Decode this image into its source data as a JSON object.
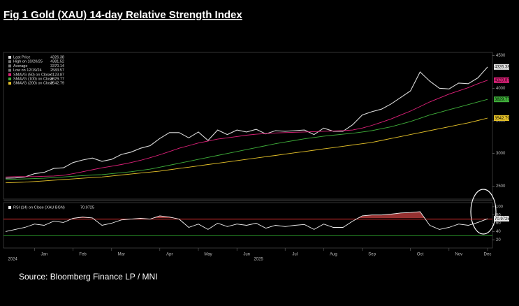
{
  "title": "Fig 1  Gold (XAU) 14-day Relative Strength Index",
  "source": "Source: Bloomberg Finance LP / MNI",
  "x_year_labels": [
    "2024",
    "2025"
  ],
  "chart_data": [
    {
      "type": "line",
      "categories": [
        null,
        null,
        null,
        "Jan",
        null,
        null,
        null,
        "Feb",
        null,
        null,
        null,
        "Mar",
        null,
        null,
        null,
        null,
        "Apr",
        null,
        null,
        null,
        "May",
        null,
        null,
        null,
        "Jun",
        null,
        null,
        null,
        null,
        "Jul",
        null,
        null,
        null,
        "Aug",
        null,
        null,
        null,
        "Sep",
        null,
        null,
        null,
        null,
        "Oct",
        null,
        null,
        null,
        "Nov",
        null,
        null,
        null,
        "Dec"
      ],
      "ylim": [
        2300,
        4550
      ],
      "yticks": [
        2500,
        3000,
        3500,
        4000,
        4500
      ],
      "series": [
        {
          "name": "Last Price",
          "color": "#d9d9d9",
          "values": [
            2620,
            2625,
            2640,
            2690,
            2710,
            2770,
            2780,
            2860,
            2900,
            2930,
            2880,
            2910,
            2985,
            3020,
            3080,
            3120,
            3230,
            3320,
            3320,
            3240,
            3330,
            3200,
            3360,
            3290,
            3360,
            3330,
            3370,
            3300,
            3350,
            3340,
            3350,
            3360,
            3290,
            3390,
            3340,
            3340,
            3440,
            3590,
            3640,
            3680,
            3760,
            3860,
            3960,
            4250,
            4110,
            4000,
            3990,
            4080,
            4070,
            4160,
            4326.38
          ]
        },
        {
          "name": "SMAVG (50)  on Close",
          "color": "#e0217a",
          "values": [
            2640,
            2645,
            2645,
            2645,
            2650,
            2655,
            2665,
            2690,
            2720,
            2750,
            2780,
            2805,
            2830,
            2860,
            2895,
            2935,
            2980,
            3030,
            3080,
            3120,
            3160,
            3190,
            3220,
            3240,
            3260,
            3280,
            3295,
            3305,
            3315,
            3320,
            3325,
            3330,
            3335,
            3340,
            3345,
            3350,
            3360,
            3390,
            3430,
            3480,
            3530,
            3590,
            3650,
            3720,
            3790,
            3850,
            3910,
            3960,
            4010,
            4070,
            4123.87
          ]
        },
        {
          "name": "SMAVG (100)  on Close",
          "color": "#3fae3a",
          "values": [
            2600,
            2605,
            2610,
            2615,
            2620,
            2630,
            2640,
            2650,
            2660,
            2670,
            2675,
            2690,
            2705,
            2720,
            2740,
            2760,
            2790,
            2820,
            2850,
            2880,
            2910,
            2940,
            2970,
            3000,
            3030,
            3060,
            3090,
            3120,
            3150,
            3175,
            3200,
            3225,
            3245,
            3265,
            3280,
            3295,
            3310,
            3330,
            3350,
            3380,
            3410,
            3450,
            3490,
            3540,
            3590,
            3630,
            3670,
            3710,
            3750,
            3790,
            3829.77
          ]
        },
        {
          "name": "SMAVG (200)  on Close",
          "color": "#e6c229",
          "values": [
            2550,
            2555,
            2560,
            2570,
            2580,
            2590,
            2600,
            2610,
            2620,
            2630,
            2640,
            2655,
            2670,
            2685,
            2700,
            2715,
            2730,
            2750,
            2770,
            2790,
            2810,
            2830,
            2850,
            2870,
            2890,
            2910,
            2930,
            2950,
            2970,
            2990,
            3010,
            3030,
            3050,
            3070,
            3090,
            3110,
            3130,
            3150,
            3170,
            3200,
            3230,
            3260,
            3290,
            3320,
            3350,
            3380,
            3410,
            3440,
            3470,
            3505,
            3542.79
          ]
        }
      ],
      "stats": [
        {
          "name": "High on 10/20/25",
          "value": 4381.52
        },
        {
          "name": "Average",
          "value": 3370.14
        },
        {
          "name": "Low on 12/19/24",
          "value": 2583.57
        }
      ]
    },
    {
      "type": "line",
      "ylim": [
        0,
        110
      ],
      "yticks": [
        20,
        40,
        60,
        80,
        100
      ],
      "series": [
        {
          "name": "RSI (14)  on Close (XAU BGN)",
          "color": "#f0f0f0",
          "values": [
            40,
            45,
            50,
            58,
            55,
            65,
            62,
            72,
            75,
            73,
            55,
            60,
            68,
            70,
            72,
            70,
            78,
            75,
            70,
            50,
            58,
            45,
            60,
            52,
            58,
            55,
            60,
            48,
            55,
            52,
            55,
            57,
            45,
            58,
            50,
            50,
            65,
            78,
            80,
            80,
            82,
            85,
            86,
            88,
            55,
            45,
            50,
            58,
            55,
            62,
            70.9725
          ]
        }
      ],
      "levels": [
        {
          "value": 70,
          "color": "#e03030"
        },
        {
          "value": 30,
          "color": "#2ca02c"
        }
      ]
    }
  ]
}
